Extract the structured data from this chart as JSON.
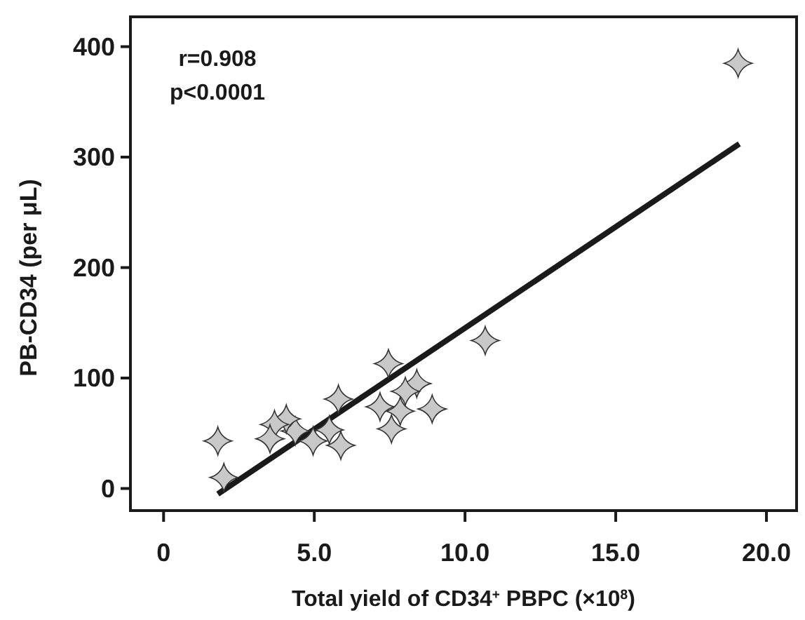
{
  "chart_data": {
    "type": "scatter",
    "xlabel": "Total yield of CD34$^{+}$ PBPC (×10$^{8}$)",
    "ylabel": "PB-CD34 (per μL)",
    "annotations": [
      "r=0.908",
      "p<0.0001"
    ],
    "xlim": [
      -1.1,
      21.0
    ],
    "ylim": [
      -20,
      427
    ],
    "xticks": [
      0,
      {
        "value": 5,
        "label": "5.0"
      },
      {
        "value": 10,
        "label": "10.0"
      },
      {
        "value": 15,
        "label": "15.0"
      },
      {
        "value": 20,
        "label": "20.0"
      }
    ],
    "yticks": [
      0,
      100,
      200,
      300,
      400
    ],
    "grid": false,
    "series": [
      {
        "color": "#c8c8c8",
        "marker": "star",
        "x": [
          19.06,
          10.67,
          7.46,
          8.4,
          8.02,
          8.91,
          7.18,
          7.85,
          7.56,
          5.8,
          5.5,
          5.88,
          4.96,
          4.37,
          4.07,
          3.68,
          3.53,
          1.8,
          2.0
        ],
        "values": [
          385,
          134,
          113,
          95,
          88,
          72,
          74,
          70,
          54,
          81,
          53,
          39,
          43,
          52,
          63,
          58,
          45,
          43,
          10
        ]
      },
      {
        "type": "line",
        "color": "#1a1a1a",
        "line_style": "solid",
        "x": [
          1.8,
          19.1
        ],
        "values": [
          -5,
          312
        ]
      }
    ]
  }
}
